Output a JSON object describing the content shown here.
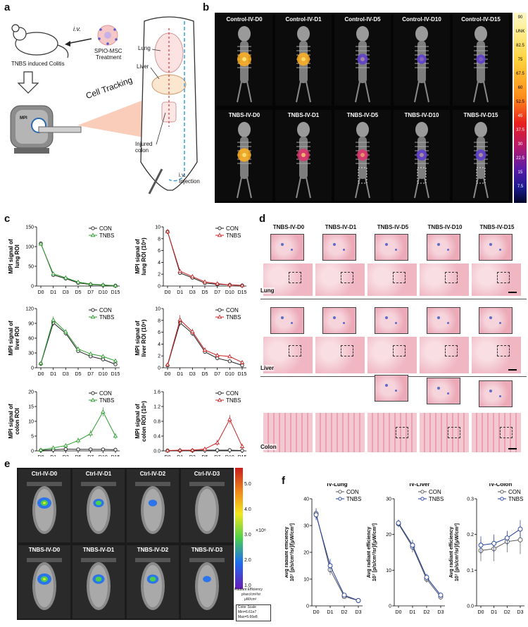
{
  "panels": {
    "a": "a",
    "b": "b",
    "c": "c",
    "d": "d",
    "e": "e",
    "f": "f"
  },
  "panel_a": {
    "iv_label": "i.v.",
    "spio_label": "SPIO-MSC",
    "treatment_label": "Treatment",
    "colitis_label": "TNBS induced Colitis",
    "mpi_label": "MPI",
    "cell_tracking": "Cell Tracking",
    "lung": "Lung",
    "liver": "Liver",
    "injured": "Injured",
    "colon": "colon",
    "iv_injection_1": "i.v.",
    "iv_injection_2": "Injection"
  },
  "panel_b": {
    "top_titles": [
      "Control-IV-D0",
      "Control-IV-D1",
      "Control-IV-D5",
      "Control-IV-D10",
      "Control-IV-D15"
    ],
    "bottom_titles": [
      "TNBS-IV-D0",
      "TNBS-IV-D1",
      "TNBS-IV-D5",
      "TNBS-IV-D10",
      "TNBS-IV-D15"
    ],
    "colorbar_labels": [
      "90",
      "UNK",
      "82.5",
      "75",
      "67.5",
      "60",
      "52.5",
      "45",
      "37.5",
      "30",
      "22.5",
      "15",
      "7.5"
    ]
  },
  "panel_d": {
    "titles": [
      "TNBS-IV-D0",
      "TNBS-IV-D1",
      "TNBS-IV-D5",
      "TNBS-IV-D10",
      "TNBS-IV-D15"
    ],
    "rows": [
      "Lung",
      "Liver",
      "Colon"
    ]
  },
  "panel_e": {
    "top_titles": [
      "Ctrl-IV-D0",
      "Ctrl-IV-D1",
      "Ctrl-IV-D2",
      "Ctrl-IV-D3"
    ],
    "bottom_titles": [
      "TNBS-IV-D0",
      "TNBS-IV-D1",
      "TNBS-IV-D2",
      "TNBS-IV-D3"
    ],
    "colorbar_ticks": [
      "5.0",
      "4.0",
      "3.0",
      "2.0",
      "1.0"
    ],
    "colorbar_exp": "×10⁸",
    "legend_1": "Radiant Efficiency",
    "legend_2": "p/sec/cm²/sr",
    "legend_3": "μW/cm²",
    "scale_1": "Color Scale",
    "scale_2": "Min=6.61e7",
    "scale_3": "Max=5.66e8"
  },
  "chart_data": [
    {
      "id": "c1",
      "type": "line",
      "ylabel_lines": [
        "MPI signal of",
        "lung ROI"
      ],
      "categories": [
        "D0",
        "D1",
        "D3",
        "D5",
        "D7",
        "D10",
        "D15"
      ],
      "ylim": [
        0,
        150
      ],
      "yticks": [
        "0",
        "50",
        "100",
        "150"
      ],
      "legend": [
        "CON",
        "TNBS"
      ],
      "colors": [
        "#222222",
        "#2e9e2e"
      ],
      "series": [
        {
          "name": "CON",
          "values": [
            108,
            28,
            19,
            8,
            4,
            2,
            1
          ],
          "err": [
            5,
            3,
            3,
            2,
            1,
            1,
            1
          ]
        },
        {
          "name": "TNBS",
          "values": [
            107,
            31,
            21,
            10,
            5,
            3,
            1
          ],
          "err": [
            5,
            3,
            3,
            2,
            1,
            1,
            1
          ]
        }
      ]
    },
    {
      "id": "c2",
      "type": "line",
      "ylabel_lines": [
        "MPI signal of",
        "lung ROI (10⁶)"
      ],
      "categories": [
        "D0",
        "D1",
        "D3",
        "D5",
        "D7",
        "D10",
        "D15"
      ],
      "ylim": [
        0,
        10
      ],
      "yticks": [
        "0",
        "2",
        "4",
        "6",
        "8",
        "10"
      ],
      "legend": [
        "CON",
        "TNBS"
      ],
      "colors": [
        "#222222",
        "#cc2222"
      ],
      "series": [
        {
          "name": "CON",
          "values": [
            9.2,
            2.2,
            1.4,
            0.5,
            0.3,
            0.2,
            0.1
          ],
          "err": [
            0.4,
            0.3,
            0.2,
            0.1,
            0.1,
            0.1,
            0.1
          ]
        },
        {
          "name": "TNBS",
          "values": [
            9.2,
            2.5,
            1.6,
            0.7,
            0.4,
            0.2,
            0.1
          ],
          "err": [
            0.4,
            0.3,
            0.2,
            0.1,
            0.1,
            0.1,
            0.1
          ]
        }
      ]
    },
    {
      "id": "c3",
      "type": "line",
      "ylabel_lines": [
        "MPI signal of",
        "liver ROI"
      ],
      "categories": [
        "D0",
        "D1",
        "D3",
        "D5",
        "D7",
        "D10",
        "D15"
      ],
      "ylim": [
        0,
        120
      ],
      "yticks": [
        "0",
        "30",
        "60",
        "90",
        "120"
      ],
      "legend": [
        "CON",
        "TNBS"
      ],
      "colors": [
        "#222222",
        "#2e9e2e"
      ],
      "series": [
        {
          "name": "CON",
          "values": [
            8,
            91,
            70,
            34,
            23,
            17,
            7
          ],
          "err": [
            3,
            6,
            5,
            4,
            3,
            3,
            2
          ]
        },
        {
          "name": "TNBS",
          "values": [
            9,
            97,
            73,
            38,
            28,
            23,
            14
          ],
          "err": [
            3,
            7,
            5,
            4,
            3,
            3,
            2
          ]
        }
      ]
    },
    {
      "id": "c4",
      "type": "line",
      "ylabel_lines": [
        "MPI signal of",
        "liver ROI (10⁶)"
      ],
      "categories": [
        "D0",
        "D1",
        "D3",
        "D5",
        "D7",
        "D10",
        "D15"
      ],
      "ylim": [
        0,
        10
      ],
      "yticks": [
        "0",
        "2",
        "4",
        "6",
        "8",
        "10"
      ],
      "legend": [
        "CON",
        "TNBS"
      ],
      "colors": [
        "#222222",
        "#cc2222"
      ],
      "series": [
        {
          "name": "CON",
          "values": [
            0.4,
            7.6,
            5.8,
            2.7,
            1.6,
            1.1,
            0.4
          ],
          "err": [
            0.2,
            0.5,
            0.4,
            0.3,
            0.2,
            0.2,
            0.1
          ]
        },
        {
          "name": "TNBS",
          "values": [
            0.5,
            8.1,
            6.1,
            3.0,
            2.1,
            1.9,
            0.9
          ],
          "err": [
            0.2,
            0.8,
            0.5,
            0.4,
            0.3,
            0.3,
            0.2
          ]
        }
      ]
    },
    {
      "id": "c5",
      "type": "line",
      "ylabel_lines": [
        "MPI signal of",
        "colon ROI"
      ],
      "categories": [
        "D0",
        "D1",
        "D3",
        "D5",
        "D7",
        "D10",
        "D15"
      ],
      "ylim": [
        0,
        20
      ],
      "yticks": [
        "0",
        "5",
        "10",
        "15",
        "20"
      ],
      "legend": [
        "CON",
        "TNBS"
      ],
      "colors": [
        "#222222",
        "#2e9e2e"
      ],
      "series": [
        {
          "name": "CON",
          "values": [
            0.2,
            0.4,
            0.6,
            0.5,
            0.5,
            0.5,
            0.4
          ],
          "err": [
            0.1,
            0.2,
            0.2,
            0.2,
            0.2,
            0.2,
            0.2
          ]
        },
        {
          "name": "TNBS",
          "values": [
            0.3,
            1.0,
            1.8,
            3.5,
            5.8,
            13.2,
            5.0
          ],
          "err": [
            0.2,
            0.5,
            0.7,
            1.0,
            1.2,
            1.5,
            1.0
          ]
        }
      ]
    },
    {
      "id": "c6",
      "type": "line",
      "ylabel_lines": [
        "MPI signal of",
        "colon ROI (10⁶)"
      ],
      "categories": [
        "D0",
        "D1",
        "D3",
        "D5",
        "D7",
        "D10",
        "D15"
      ],
      "ylim": [
        0,
        1.6
      ],
      "yticks": [
        "0.0",
        "0.4",
        "0.8",
        "1.2",
        "1.6"
      ],
      "legend": [
        "CON",
        "TNBS"
      ],
      "colors": [
        "#222222",
        "#cc2222"
      ],
      "series": [
        {
          "name": "CON",
          "values": [
            0.01,
            0.01,
            0.01,
            0.02,
            0.02,
            0.02,
            0.01
          ],
          "err": [
            0.01,
            0.01,
            0.01,
            0.01,
            0.01,
            0.01,
            0.01
          ]
        },
        {
          "name": "TNBS",
          "values": [
            0.01,
            0.02,
            0.02,
            0.05,
            0.22,
            0.85,
            0.12
          ],
          "err": [
            0.01,
            0.01,
            0.01,
            0.03,
            0.08,
            0.12,
            0.08
          ]
        }
      ]
    },
    {
      "id": "f1",
      "type": "line",
      "title": "IV-Lung",
      "ylabel_lines": [
        "Avg radiant efficiency",
        "10⁷ [p/s/cm²/sr]/[μW/cm²]"
      ],
      "categories": [
        "D0",
        "D1",
        "D2",
        "D3"
      ],
      "ylim": [
        0,
        40
      ],
      "yticks": [
        "0",
        "10",
        "20",
        "30",
        "40"
      ],
      "legend": [
        "CON",
        "TNBS"
      ],
      "colors": [
        "#555555",
        "#1f3d99"
      ],
      "series": [
        {
          "name": "CON",
          "values": [
            34.5,
            13.5,
            3.5,
            2.0
          ],
          "err": [
            2.0,
            2.0,
            0.8,
            0.5
          ]
        },
        {
          "name": "TNBS",
          "values": [
            34.0,
            15.0,
            4.0,
            2.0
          ],
          "err": [
            2.0,
            2.5,
            0.8,
            0.5
          ]
        }
      ]
    },
    {
      "id": "f2",
      "type": "line",
      "title": "IV-Liver",
      "ylabel_lines": [
        "Avg radiant efficiency",
        "10⁷ [p/s/cm²/sr]/[μW/cm²]"
      ],
      "categories": [
        "D0",
        "D1",
        "D2",
        "D3"
      ],
      "ylim": [
        0,
        30
      ],
      "yticks": [
        "0",
        "10",
        "20",
        "30"
      ],
      "legend": [
        "CON",
        "TNBS"
      ],
      "colors": [
        "#555555",
        "#1f3d99"
      ],
      "series": [
        {
          "name": "CON",
          "values": [
            23.0,
            16.5,
            7.5,
            2.5
          ],
          "err": [
            1.0,
            1.5,
            1.0,
            0.8
          ]
        },
        {
          "name": "TNBS",
          "values": [
            23.2,
            17.0,
            8.0,
            3.0
          ],
          "err": [
            1.0,
            1.5,
            1.0,
            0.8
          ]
        }
      ]
    },
    {
      "id": "f3",
      "type": "line",
      "title": "IV-Colon",
      "ylabel_lines": [
        "Avg radiant efficiency",
        "10⁷ [p/s/cm²/sr]/[μW/cm²]"
      ],
      "categories": [
        "D0",
        "D1",
        "D2",
        "D3"
      ],
      "ylim": [
        0.0,
        0.3
      ],
      "yticks": [
        "0.0",
        "0.1",
        "0.2",
        "0.3"
      ],
      "legend": [
        "CON",
        "TNBS"
      ],
      "colors": [
        "#555555",
        "#1f3d99"
      ],
      "series": [
        {
          "name": "CON",
          "values": [
            0.155,
            0.16,
            0.18,
            0.185
          ],
          "err": [
            0.03,
            0.035,
            0.03,
            0.04
          ]
        },
        {
          "name": "TNBS",
          "values": [
            0.17,
            0.175,
            0.19,
            0.215
          ],
          "err": [
            0.025,
            0.025,
            0.02,
            0.025
          ]
        }
      ]
    }
  ]
}
